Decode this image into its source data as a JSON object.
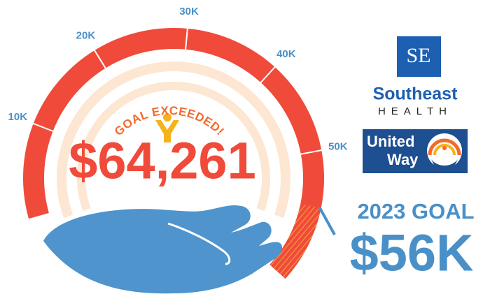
{
  "chart_data": {
    "type": "gauge",
    "value": 64261,
    "value_label": "$64,261",
    "goal": 56000,
    "goal_title": "2023 GOAL",
    "goal_label": "$56K",
    "status": "GOAL EXCEEDED!",
    "ylim": [
      0,
      70000
    ],
    "yticks": [
      {
        "value": 10000,
        "label": "10K"
      },
      {
        "value": 20000,
        "label": "20K"
      },
      {
        "value": 30000,
        "label": "30K"
      },
      {
        "value": 40000,
        "label": "40K"
      },
      {
        "value": 50000,
        "label": "50K"
      }
    ],
    "color": "#f04a3a",
    "goal_color": "#f26b2e",
    "tick_color": "#4a90c8"
  },
  "logos": {
    "southeast_mark": "SE",
    "southeast_name": "Southeast",
    "southeast_sub": "HEALTH",
    "united_way": [
      "United",
      "Way"
    ]
  }
}
